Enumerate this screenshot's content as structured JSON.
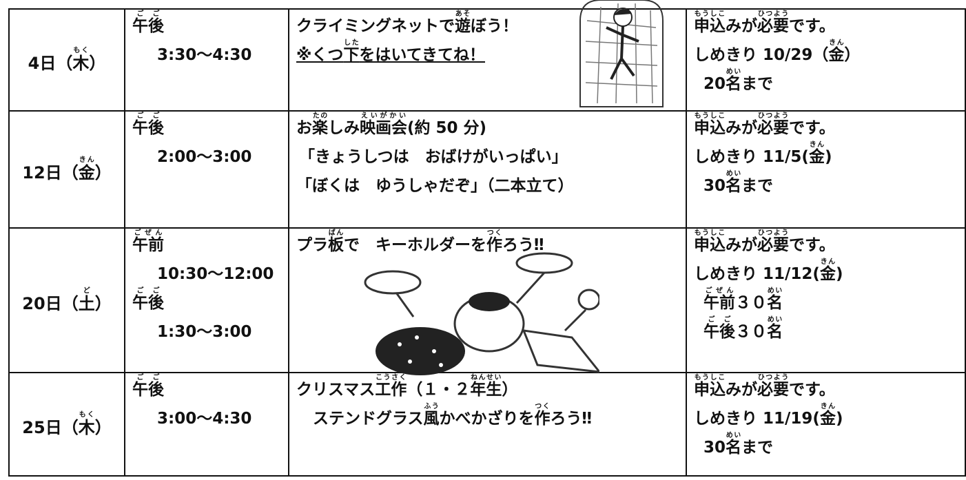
{
  "table": {
    "rows": [
      {
        "date": [
          "4日（",
          {
            "text": "木",
            "ruby": "もく"
          },
          "）"
        ],
        "time": [
          [
            {
              "text": "午後",
              "ruby": "ごご"
            }
          ],
          [
            "3:30～4:30"
          ]
        ],
        "activity": [
          [
            "クライミングネットで",
            {
              "text": "遊",
              "ruby": "あそ"
            },
            "ぼう！"
          ],
          [
            "※くつ",
            {
              "text": "下",
              "ruby": "した"
            },
            "をはいてきてね！"
          ]
        ],
        "application": [
          [
            {
              "text": "申込",
              "ruby": "もうしこ"
            },
            "みが",
            {
              "text": "必要",
              "ruby": "ひつよう"
            },
            "です。"
          ],
          [
            "しめきり 10/29（",
            {
              "text": "金",
              "ruby": "きん"
            },
            "）"
          ],
          [
            "20",
            {
              "text": "名",
              "ruby": "めい"
            },
            "まで"
          ]
        ]
      },
      {
        "date": [
          "12日（",
          {
            "text": "金",
            "ruby": "きん"
          },
          "）"
        ],
        "time": [
          [
            {
              "text": "午後",
              "ruby": "ごご"
            }
          ],
          [
            "2:00～3:00"
          ]
        ],
        "activity": [
          [
            "お",
            {
              "text": "楽",
              "ruby": "たの"
            },
            "しみ",
            {
              "text": "映画会",
              "ruby": "えいがかい"
            },
            "(約 50 分)"
          ],
          [
            "「きょうしつは　おばけがいっぱい」"
          ],
          [
            "「ぼくは　ゆうしゃだぞ」（二本立て）"
          ]
        ],
        "application": [
          [
            {
              "text": "申込",
              "ruby": "もうしこ"
            },
            "みが",
            {
              "text": "必要",
              "ruby": "ひつよう"
            },
            "です。"
          ],
          [
            "しめきり 11/5(",
            {
              "text": "金",
              "ruby": "きん"
            },
            ")"
          ],
          [
            "30",
            {
              "text": "名",
              "ruby": "めい"
            },
            "まで"
          ]
        ]
      },
      {
        "date": [
          "20日（",
          {
            "text": "土",
            "ruby": "ど"
          },
          "）"
        ],
        "time": [
          [
            {
              "text": "午前",
              "ruby": "ごぜん"
            }
          ],
          [
            "10:30～12:00"
          ],
          [
            {
              "text": "午後",
              "ruby": "ごご"
            }
          ],
          [
            "1:30～3:00"
          ]
        ],
        "activity": [
          [
            "プラ",
            {
              "text": "板",
              "ruby": "ばん"
            },
            "で　キーホルダーを",
            {
              "text": "作",
              "ruby": "つく"
            },
            "ろう‼"
          ]
        ],
        "application": [
          [
            {
              "text": "申込",
              "ruby": "もうしこ"
            },
            "みが",
            {
              "text": "必要",
              "ruby": "ひつよう"
            },
            "です。"
          ],
          [
            "しめきり 11/12(",
            {
              "text": "金",
              "ruby": "きん"
            },
            ")"
          ],
          [
            {
              "text": "午前",
              "ruby": "ごぜん"
            },
            "３０",
            {
              "text": "名",
              "ruby": "めい"
            }
          ],
          [
            {
              "text": "午後",
              "ruby": "ごご"
            },
            "３０",
            {
              "text": "名",
              "ruby": "めい"
            }
          ]
        ]
      },
      {
        "date": [
          "25日（",
          {
            "text": "木",
            "ruby": "もく"
          },
          "）"
        ],
        "time": [
          [
            {
              "text": "午後",
              "ruby": "ごご"
            }
          ],
          [
            "3:00～4:30"
          ]
        ],
        "activity": [
          [
            "クリスマス",
            {
              "text": "工作",
              "ruby": "こうさく"
            },
            "（１・２",
            {
              "text": "年生",
              "ruby": "ねんせい"
            },
            "）"
          ],
          [
            "ステンドグラス",
            {
              "text": "風",
              "ruby": "ふう"
            },
            "かべかざりを",
            {
              "text": "作",
              "ruby": "つく"
            },
            "ろう‼"
          ]
        ],
        "application": [
          [
            {
              "text": "申込",
              "ruby": "もうしこ"
            },
            "みが",
            {
              "text": "必要",
              "ruby": "ひつよう"
            },
            "です。"
          ],
          [
            "しめきり 11/19(",
            {
              "text": "金",
              "ruby": "きん"
            },
            ")"
          ],
          [
            "30",
            {
              "text": "名",
              "ruby": "めい"
            },
            "まで"
          ]
        ]
      }
    ]
  }
}
